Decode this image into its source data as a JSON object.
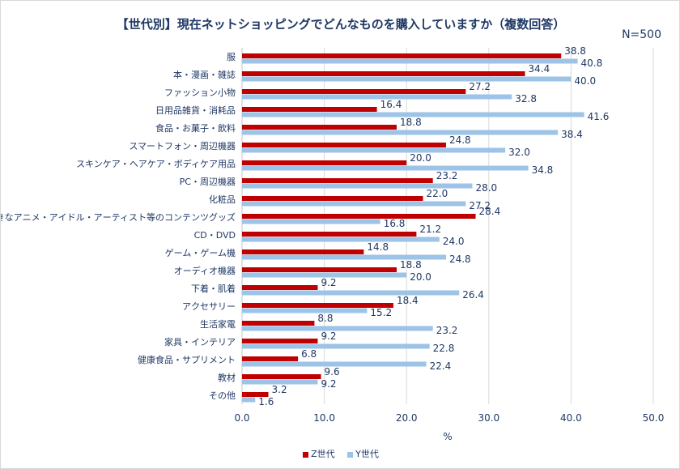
{
  "chart_data": {
    "type": "bar",
    "orientation": "horizontal",
    "title": "【世代別】現在ネットショッピングでどんなものを購入していますか（複数回答）",
    "annotation": "N=500",
    "xlabel": "%",
    "xlim": [
      0,
      50
    ],
    "xticks": [
      "0.0",
      "10.0",
      "20.0",
      "30.0",
      "40.0",
      "50.0"
    ],
    "grid": true,
    "legend_position": "bottom",
    "categories": [
      "服",
      "本・漫画・雑誌",
      "ファッション小物",
      "日用品雑貨・消耗品",
      "食品・お菓子・飲料",
      "スマートフォン・周辺機器",
      "スキンケア・ヘアケア・ボディケア用品",
      "PC・周辺機器",
      "化粧品",
      "好きなアニメ・アイドル・アーティスト等のコンテンツグッズ",
      "CD・DVD",
      "ゲーム・ゲーム機",
      "オーディオ機器",
      "下着・肌着",
      "アクセサリー",
      "生活家電",
      "家具・インテリア",
      "健康食品・サプリメント",
      "教材",
      "その他"
    ],
    "series": [
      {
        "name": "Z世代",
        "color": "#c00000",
        "values": [
          38.8,
          34.4,
          27.2,
          16.4,
          18.8,
          24.8,
          20.0,
          23.2,
          22.0,
          28.4,
          21.2,
          14.8,
          18.8,
          9.2,
          18.4,
          8.8,
          9.2,
          6.8,
          9.6,
          3.2
        ]
      },
      {
        "name": "Y世代",
        "color": "#9dc3e6",
        "values": [
          40.8,
          40.0,
          32.8,
          41.6,
          38.4,
          32.0,
          34.8,
          28.0,
          27.2,
          16.8,
          24.0,
          24.8,
          20.0,
          26.4,
          15.2,
          23.2,
          22.8,
          22.4,
          9.2,
          1.6
        ]
      }
    ]
  }
}
